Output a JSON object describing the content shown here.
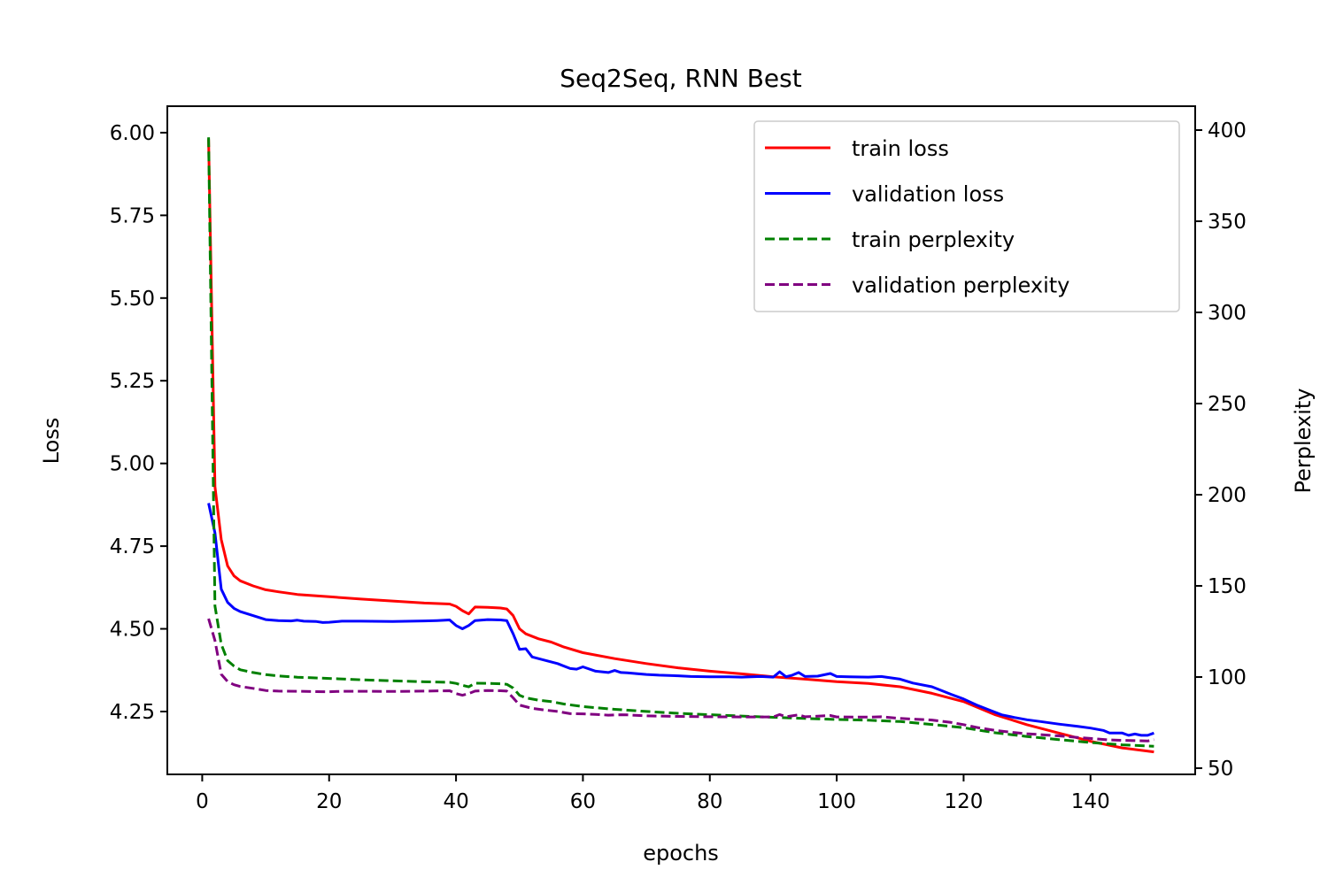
{
  "chart_data": {
    "type": "line",
    "title": "Seq2Seq, RNN Best",
    "xlabel": "epochs",
    "ylabel": "Loss",
    "ylabel_right": "Perplexity",
    "xlim": [
      -5.5,
      156.5
    ],
    "ylim": [
      4.06,
      6.08
    ],
    "ylim_right": [
      50,
      400
    ],
    "xticks": [
      0,
      20,
      40,
      60,
      80,
      100,
      120,
      140
    ],
    "yticks": [
      4.25,
      4.5,
      4.75,
      5.0,
      5.25,
      5.5,
      5.75,
      6.0
    ],
    "yticks_right": [
      50,
      100,
      150,
      200,
      250,
      300,
      350,
      400
    ],
    "legend_position": "upper right",
    "grid": false,
    "series": [
      {
        "name": "train loss",
        "axis": "left",
        "color": "#ff0000",
        "dash": "solid",
        "points": [
          [
            1,
            5.98
          ],
          [
            2,
            4.93
          ],
          [
            3,
            4.77
          ],
          [
            4,
            4.69
          ],
          [
            5,
            4.66
          ],
          [
            6,
            4.645
          ],
          [
            8,
            4.63
          ],
          [
            10,
            4.618
          ],
          [
            12,
            4.612
          ],
          [
            15,
            4.604
          ],
          [
            20,
            4.597
          ],
          [
            25,
            4.59
          ],
          [
            30,
            4.584
          ],
          [
            35,
            4.578
          ],
          [
            39,
            4.575
          ],
          [
            40,
            4.568
          ],
          [
            41,
            4.555
          ],
          [
            42,
            4.545
          ],
          [
            43,
            4.566
          ],
          [
            45,
            4.565
          ],
          [
            47,
            4.563
          ],
          [
            48,
            4.56
          ],
          [
            49,
            4.54
          ],
          [
            50,
            4.5
          ],
          [
            51,
            4.485
          ],
          [
            53,
            4.47
          ],
          [
            55,
            4.46
          ],
          [
            57,
            4.445
          ],
          [
            60,
            4.428
          ],
          [
            65,
            4.41
          ],
          [
            70,
            4.395
          ],
          [
            75,
            4.382
          ],
          [
            80,
            4.372
          ],
          [
            85,
            4.364
          ],
          [
            90,
            4.355
          ],
          [
            95,
            4.348
          ],
          [
            100,
            4.34
          ],
          [
            105,
            4.335
          ],
          [
            110,
            4.325
          ],
          [
            115,
            4.305
          ],
          [
            120,
            4.28
          ],
          [
            125,
            4.24
          ],
          [
            130,
            4.21
          ],
          [
            135,
            4.185
          ],
          [
            140,
            4.16
          ],
          [
            145,
            4.14
          ],
          [
            150,
            4.128
          ]
        ]
      },
      {
        "name": "validation loss",
        "axis": "left",
        "color": "#0000ff",
        "dash": "solid",
        "points": [
          [
            1,
            4.88
          ],
          [
            2,
            4.79
          ],
          [
            3,
            4.62
          ],
          [
            4,
            4.58
          ],
          [
            5,
            4.562
          ],
          [
            6,
            4.552
          ],
          [
            8,
            4.54
          ],
          [
            10,
            4.528
          ],
          [
            12,
            4.525
          ],
          [
            14,
            4.524
          ],
          [
            15,
            4.526
          ],
          [
            16,
            4.523
          ],
          [
            18,
            4.522
          ],
          [
            19,
            4.519
          ],
          [
            20,
            4.52
          ],
          [
            22,
            4.523
          ],
          [
            25,
            4.523
          ],
          [
            30,
            4.522
          ],
          [
            35,
            4.524
          ],
          [
            37,
            4.525
          ],
          [
            39,
            4.527
          ],
          [
            40,
            4.51
          ],
          [
            41,
            4.5
          ],
          [
            42,
            4.51
          ],
          [
            43,
            4.525
          ],
          [
            45,
            4.528
          ],
          [
            47,
            4.527
          ],
          [
            48,
            4.525
          ],
          [
            49,
            4.485
          ],
          [
            50,
            4.438
          ],
          [
            51,
            4.44
          ],
          [
            52,
            4.415
          ],
          [
            54,
            4.405
          ],
          [
            56,
            4.395
          ],
          [
            58,
            4.38
          ],
          [
            59,
            4.378
          ],
          [
            60,
            4.385
          ],
          [
            62,
            4.372
          ],
          [
            64,
            4.368
          ],
          [
            65,
            4.374
          ],
          [
            66,
            4.368
          ],
          [
            67,
            4.367
          ],
          [
            70,
            4.362
          ],
          [
            72,
            4.36
          ],
          [
            75,
            4.358
          ],
          [
            77,
            4.356
          ],
          [
            80,
            4.355
          ],
          [
            83,
            4.355
          ],
          [
            85,
            4.354
          ],
          [
            88,
            4.356
          ],
          [
            90,
            4.354
          ],
          [
            91,
            4.37
          ],
          [
            92,
            4.355
          ],
          [
            93,
            4.36
          ],
          [
            94,
            4.368
          ],
          [
            95,
            4.356
          ],
          [
            97,
            4.357
          ],
          [
            99,
            4.365
          ],
          [
            100,
            4.356
          ],
          [
            102,
            4.355
          ],
          [
            105,
            4.354
          ],
          [
            107,
            4.356
          ],
          [
            110,
            4.348
          ],
          [
            112,
            4.336
          ],
          [
            115,
            4.325
          ],
          [
            117,
            4.31
          ],
          [
            118,
            4.302
          ],
          [
            120,
            4.288
          ],
          [
            122,
            4.27
          ],
          [
            124,
            4.255
          ],
          [
            126,
            4.24
          ],
          [
            128,
            4.232
          ],
          [
            130,
            4.225
          ],
          [
            132,
            4.22
          ],
          [
            135,
            4.212
          ],
          [
            138,
            4.205
          ],
          [
            140,
            4.2
          ],
          [
            142,
            4.193
          ],
          [
            143,
            4.185
          ],
          [
            145,
            4.185
          ],
          [
            146,
            4.178
          ],
          [
            147,
            4.182
          ],
          [
            148,
            4.178
          ],
          [
            149,
            4.178
          ],
          [
            150,
            4.185
          ]
        ]
      },
      {
        "name": "train perplexity",
        "axis": "right",
        "color": "#008000",
        "dash": "dashed",
        "points": [
          [
            1,
            396
          ],
          [
            2,
            139
          ],
          [
            3,
            118
          ],
          [
            4,
            109
          ],
          [
            5,
            106
          ],
          [
            6,
            104
          ],
          [
            8,
            102.5
          ],
          [
            10,
            101.3
          ],
          [
            12,
            100.6
          ],
          [
            15,
            99.9
          ],
          [
            20,
            99.2
          ],
          [
            25,
            98.5
          ],
          [
            30,
            97.9
          ],
          [
            35,
            97.4
          ],
          [
            39,
            97.1
          ],
          [
            40,
            96.5
          ],
          [
            41,
            95.5
          ],
          [
            42,
            94.6
          ],
          [
            43,
            96.6
          ],
          [
            45,
            96.5
          ],
          [
            47,
            96.3
          ],
          [
            48,
            96
          ],
          [
            49,
            94
          ],
          [
            50,
            90
          ],
          [
            51,
            88.6
          ],
          [
            53,
            87.3
          ],
          [
            55,
            86.5
          ],
          [
            57,
            85.2
          ],
          [
            60,
            83.8
          ],
          [
            65,
            82.3
          ],
          [
            70,
            81.1
          ],
          [
            75,
            80.1
          ],
          [
            80,
            79.3
          ],
          [
            85,
            78.6
          ],
          [
            90,
            77.9
          ],
          [
            95,
            77.3
          ],
          [
            100,
            76.7
          ],
          [
            105,
            76.3
          ],
          [
            110,
            75.6
          ],
          [
            115,
            74
          ],
          [
            120,
            72.2
          ],
          [
            125,
            69.4
          ],
          [
            130,
            67.4
          ],
          [
            135,
            65.7
          ],
          [
            140,
            64.1
          ],
          [
            145,
            62.8
          ],
          [
            150,
            62
          ]
        ]
      },
      {
        "name": "validation perplexity",
        "axis": "right",
        "color": "#800080",
        "dash": "dashed",
        "points": [
          [
            1,
            132
          ],
          [
            2,
            120
          ],
          [
            3,
            101.5
          ],
          [
            4,
            97.5
          ],
          [
            5,
            95.8
          ],
          [
            6,
            94.8
          ],
          [
            8,
            93.8
          ],
          [
            10,
            92.6
          ],
          [
            12,
            92.3
          ],
          [
            15,
            92.2
          ],
          [
            18,
            92
          ],
          [
            20,
            91.9
          ],
          [
            22,
            92.2
          ],
          [
            25,
            92.2
          ],
          [
            30,
            92.1
          ],
          [
            35,
            92.3
          ],
          [
            39,
            92.5
          ],
          [
            40,
            90.9
          ],
          [
            41,
            90
          ],
          [
            42,
            90.9
          ],
          [
            43,
            92.3
          ],
          [
            45,
            92.6
          ],
          [
            47,
            92.5
          ],
          [
            48,
            92.3
          ],
          [
            49,
            88.6
          ],
          [
            50,
            84.6
          ],
          [
            52,
            82.8
          ],
          [
            54,
            81.9
          ],
          [
            56,
            81.1
          ],
          [
            58,
            79.9
          ],
          [
            60,
            79.8
          ],
          [
            62,
            79.5
          ],
          [
            64,
            79.1
          ],
          [
            66,
            79.3
          ],
          [
            67,
            79.2
          ],
          [
            70,
            78.7
          ],
          [
            75,
            78.4
          ],
          [
            80,
            78.2
          ],
          [
            85,
            78.1
          ],
          [
            90,
            78.1
          ],
          [
            91,
            79.4
          ],
          [
            92,
            78.2
          ],
          [
            94,
            79.2
          ],
          [
            95,
            78.2
          ],
          [
            99,
            78.9
          ],
          [
            100,
            78.1
          ],
          [
            105,
            78
          ],
          [
            107,
            78.2
          ],
          [
            110,
            77.3
          ],
          [
            115,
            76.4
          ],
          [
            118,
            75.1
          ],
          [
            120,
            73.9
          ],
          [
            122,
            72.4
          ],
          [
            125,
            70.7
          ],
          [
            128,
            69.5
          ],
          [
            130,
            68.9
          ],
          [
            135,
            67.7
          ],
          [
            140,
            66.3
          ],
          [
            143,
            65.5
          ],
          [
            145,
            65.3
          ],
          [
            147,
            65.1
          ],
          [
            149,
            64.9
          ],
          [
            150,
            65.7
          ]
        ]
      }
    ]
  }
}
